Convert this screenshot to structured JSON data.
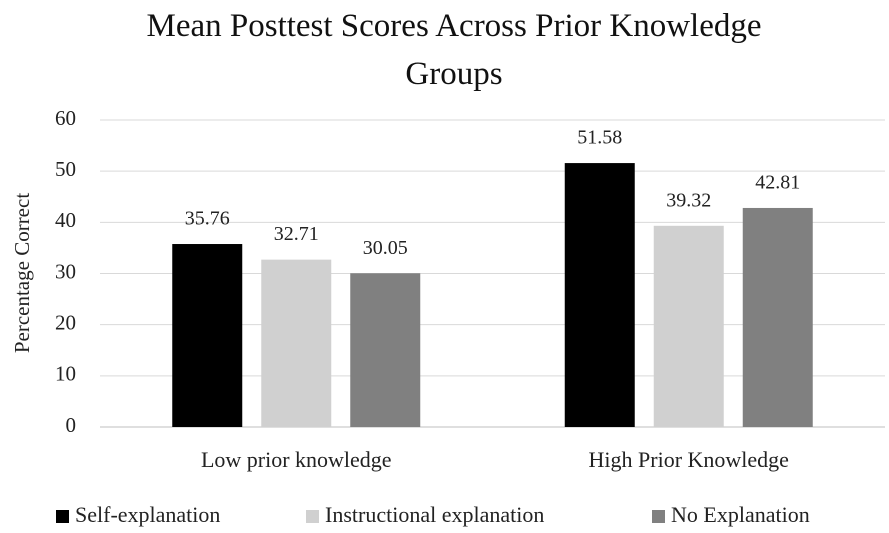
{
  "chart_data": {
    "type": "bar",
    "title": "Mean Posttest Scores Across Prior Knowledge Groups",
    "y_label": "Percentage Correct",
    "categories": [
      "Low prior knowledge",
      "High Prior Knowledge"
    ],
    "series": [
      {
        "name": "Self-explanation",
        "color": "#000000",
        "values": [
          35.76,
          51.58
        ]
      },
      {
        "name": "Instructional explanation",
        "color": "#d0d0d0",
        "values": [
          32.71,
          39.32
        ]
      },
      {
        "name": "No Explanation",
        "color": "#808080",
        "values": [
          30.05,
          42.81
        ]
      }
    ],
    "ylim": [
      0,
      60
    ],
    "yticks": [
      0,
      10,
      20,
      30,
      40,
      50,
      60
    ],
    "grid": true,
    "legend": "bottom"
  }
}
